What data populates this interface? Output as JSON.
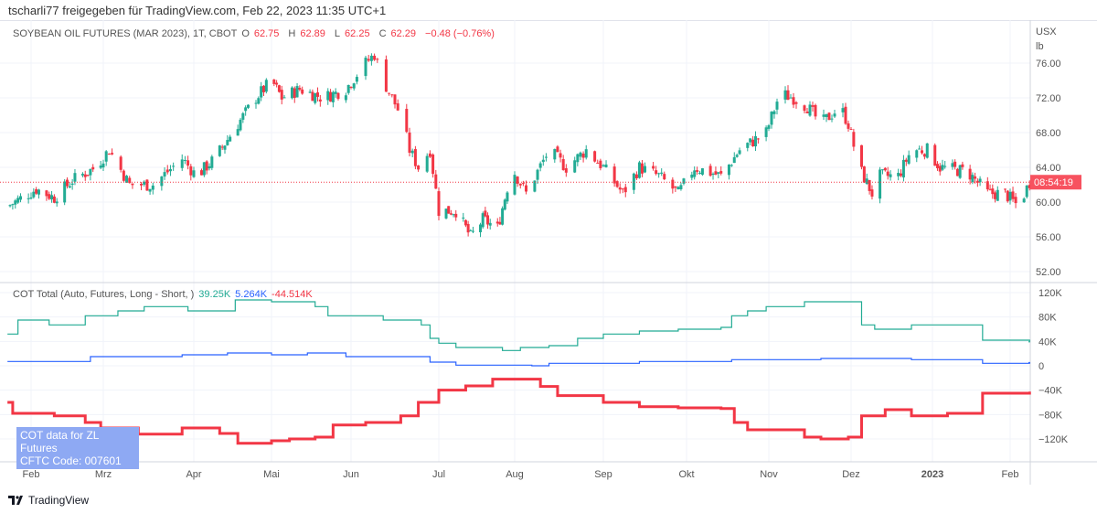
{
  "share_line": "tscharli77 freigegeben für TradingView.com, Feb 22, 2023 11:35 UTC+1",
  "symbol": {
    "title": "SOYBEAN OIL FUTURES (MAR 2023), 1T, CBOT",
    "o_label": "O",
    "o": "62.75",
    "h_label": "H",
    "h": "62.89",
    "l_label": "L",
    "l": "62.25",
    "c_label": "C",
    "c": "62.29",
    "change": "−0.48 (−0.76%)"
  },
  "price_axis": {
    "unit1": "USX",
    "unit2": "lb",
    "ticks": [
      "76.00",
      "72.00",
      "68.00",
      "64.00",
      "60.00",
      "56.00",
      "52.00"
    ],
    "countdown": "08:54:19",
    "last_price": 62.29
  },
  "cot": {
    "title": "COT Total (Auto, Futures, Long - Short, )",
    "v1": "39.25K",
    "v2": "5.264K",
    "v3": "-44.514K",
    "ticks": [
      "120K",
      "80K",
      "40K",
      "0",
      "−40K",
      "−80K",
      "−120K"
    ],
    "box_line1": "COT data for ZL Futures",
    "box_line2": "CFTC Code: 007601"
  },
  "time_axis": [
    "Feb",
    "Mrz",
    "Apr",
    "Mai",
    "Jun",
    "Jul",
    "Aug",
    "Sep",
    "Okt",
    "Nov",
    "Dez",
    "2023",
    "Feb"
  ],
  "logo": "TradingView",
  "colors": {
    "up": "#22ab94",
    "down": "#f23645",
    "cot1": "#22ab94",
    "cot2": "#2962ff",
    "cot3": "#f23645"
  },
  "chart_data": [
    {
      "type": "candlestick",
      "ylim": [
        52,
        76
      ],
      "close_path": [
        [
          "2022-01-23",
          59.5
        ],
        [
          "2022-02-03",
          61.5
        ],
        [
          "2022-02-10",
          60.5
        ],
        [
          "2022-02-17",
          62.5
        ],
        [
          "2022-02-26",
          64
        ],
        [
          "2022-03-03",
          66
        ],
        [
          "2022-03-10",
          62
        ],
        [
          "2022-03-18",
          62
        ],
        [
          "2022-03-28",
          65
        ],
        [
          "2022-04-02",
          63
        ],
        [
          "2022-04-09",
          65
        ],
        [
          "2022-04-18",
          69
        ],
        [
          "2022-04-25",
          72
        ],
        [
          "2022-05-01",
          74
        ],
        [
          "2022-05-05",
          72
        ],
        [
          "2022-05-12",
          73
        ],
        [
          "2022-05-21",
          72
        ],
        [
          "2022-05-30",
          73
        ],
        [
          "2022-06-06",
          76
        ],
        [
          "2022-06-09",
          77
        ],
        [
          "2022-06-12",
          74
        ],
        [
          "2022-06-18",
          70
        ],
        [
          "2022-06-21",
          66
        ],
        [
          "2022-06-24",
          64
        ],
        [
          "2022-06-28",
          66
        ],
        [
          "2022-07-01",
          59
        ],
        [
          "2022-07-08",
          59
        ],
        [
          "2022-07-14",
          56
        ],
        [
          "2022-07-19",
          58
        ],
        [
          "2022-07-25",
          57
        ],
        [
          "2022-07-31",
          64
        ],
        [
          "2022-08-05",
          61
        ],
        [
          "2022-08-13",
          66
        ],
        [
          "2022-08-19",
          64
        ],
        [
          "2022-08-26",
          66
        ],
        [
          "2022-09-01",
          64
        ],
        [
          "2022-09-08",
          61
        ],
        [
          "2022-09-14",
          64
        ],
        [
          "2022-09-21",
          63
        ],
        [
          "2022-09-28",
          61
        ],
        [
          "2022-10-04",
          64
        ],
        [
          "2022-10-14",
          63
        ],
        [
          "2022-10-21",
          66
        ],
        [
          "2022-10-31",
          68
        ],
        [
          "2022-11-05",
          72.5
        ],
        [
          "2022-11-10",
          72
        ],
        [
          "2022-11-15",
          71
        ],
        [
          "2022-11-20",
          69
        ],
        [
          "2022-11-27",
          71
        ],
        [
          "2022-11-30",
          69
        ],
        [
          "2022-12-04",
          64
        ],
        [
          "2022-12-09",
          61
        ],
        [
          "2022-12-12",
          63
        ],
        [
          "2022-12-19",
          63
        ],
        [
          "2022-12-24",
          66
        ],
        [
          "2022-12-30",
          66
        ],
        [
          "2023-01-04",
          64
        ],
        [
          "2023-01-15",
          63.5
        ],
        [
          "2023-01-23",
          61
        ],
        [
          "2023-01-30",
          61
        ],
        [
          "2023-02-04",
          59.5
        ],
        [
          "2023-02-08",
          62.29
        ]
      ]
    },
    {
      "type": "step-line",
      "ylim": [
        -140,
        140
      ],
      "series": [
        {
          "points": [
            [
              "2022-01-23",
              52
            ],
            [
              "2022-01-27",
              75
            ],
            [
              "2022-02-08",
              67
            ],
            [
              "2022-02-22",
              82
            ],
            [
              "2022-03-06",
              90
            ],
            [
              "2022-03-15",
              97
            ],
            [
              "2022-03-30",
              90
            ],
            [
              "2022-04-17",
              108
            ],
            [
              "2022-05-01",
              105
            ],
            [
              "2022-05-18",
              97
            ],
            [
              "2022-05-23",
              82
            ],
            [
              "2022-06-12",
              75
            ],
            [
              "2022-06-25",
              67
            ],
            [
              "2022-06-28",
              45
            ],
            [
              "2022-07-01",
              37
            ],
            [
              "2022-07-08",
              30
            ],
            [
              "2022-07-27",
              25
            ],
            [
              "2022-08-03",
              30
            ],
            [
              "2022-08-13",
              33
            ],
            [
              "2022-08-23",
              45
            ],
            [
              "2022-09-01",
              52
            ],
            [
              "2022-09-14",
              57
            ],
            [
              "2022-09-28",
              60
            ],
            [
              "2022-10-14",
              63
            ],
            [
              "2022-10-18",
              82
            ],
            [
              "2022-10-24",
              90
            ],
            [
              "2022-10-31",
              97
            ],
            [
              "2022-11-14",
              105
            ],
            [
              "2022-12-04",
              105
            ],
            [
              "2022-12-05",
              67
            ],
            [
              "2022-12-10",
              60
            ],
            [
              "2022-12-24",
              67
            ],
            [
              "2023-01-07",
              67
            ],
            [
              "2023-01-21",
              42
            ],
            [
              "2023-02-08",
              39.25
            ]
          ]
        },
        {
          "points": [
            [
              "2022-01-23",
              7
            ],
            [
              "2022-02-24",
              15
            ],
            [
              "2022-03-28",
              18
            ],
            [
              "2022-04-14",
              21
            ],
            [
              "2022-05-01",
              18
            ],
            [
              "2022-05-15",
              21
            ],
            [
              "2022-05-30",
              15
            ],
            [
              "2022-06-28",
              6
            ],
            [
              "2022-07-08",
              1
            ],
            [
              "2022-08-07",
              0
            ],
            [
              "2022-08-13",
              4
            ],
            [
              "2022-09-14",
              7
            ],
            [
              "2022-10-18",
              10
            ],
            [
              "2022-11-20",
              12
            ],
            [
              "2022-12-24",
              10
            ],
            [
              "2023-01-21",
              4
            ],
            [
              "2023-02-08",
              5.264
            ]
          ]
        },
        {
          "points": [
            [
              "2022-01-23",
              -60
            ],
            [
              "2022-01-25",
              -78
            ],
            [
              "2022-02-10",
              -82
            ],
            [
              "2022-02-22",
              -93
            ],
            [
              "2022-02-28",
              -102
            ],
            [
              "2022-03-13",
              -112
            ],
            [
              "2022-03-28",
              -102
            ],
            [
              "2022-04-11",
              -111
            ],
            [
              "2022-04-18",
              -127
            ],
            [
              "2022-05-01",
              -123
            ],
            [
              "2022-05-08",
              -120
            ],
            [
              "2022-05-18",
              -117
            ],
            [
              "2022-05-25",
              -97
            ],
            [
              "2022-06-06",
              -93
            ],
            [
              "2022-06-18",
              -82
            ],
            [
              "2022-06-24",
              -60
            ],
            [
              "2022-07-01",
              -40
            ],
            [
              "2022-07-12",
              -33
            ],
            [
              "2022-07-23",
              -22
            ],
            [
              "2022-08-10",
              -34
            ],
            [
              "2022-08-16",
              -49
            ],
            [
              "2022-09-01",
              -60
            ],
            [
              "2022-09-14",
              -67
            ],
            [
              "2022-09-28",
              -69
            ],
            [
              "2022-10-14",
              -70
            ],
            [
              "2022-10-19",
              -93
            ],
            [
              "2022-10-24",
              -105
            ],
            [
              "2022-11-14",
              -117
            ],
            [
              "2022-11-20",
              -120
            ],
            [
              "2022-11-30",
              -117
            ],
            [
              "2022-12-05",
              -82
            ],
            [
              "2022-12-14",
              -72
            ],
            [
              "2022-12-24",
              -82
            ],
            [
              "2023-01-07",
              -78
            ],
            [
              "2023-01-21",
              -45
            ],
            [
              "2023-02-08",
              -44.514
            ]
          ]
        }
      ]
    }
  ]
}
